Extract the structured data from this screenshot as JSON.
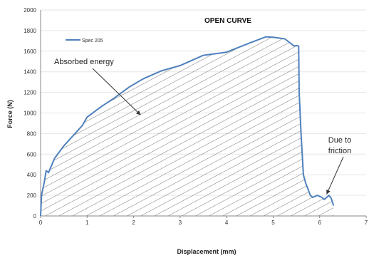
{
  "chart_data": {
    "type": "line",
    "title": "OPEN CURVE",
    "xlabel": "Displacement (mm)",
    "ylabel": "Force (N)",
    "xlim": [
      0,
      7
    ],
    "ylim": [
      0,
      2000
    ],
    "x_ticks": [
      "0",
      "1",
      "2",
      "3",
      "4",
      "5",
      "6",
      "7"
    ],
    "y_ticks": [
      "0",
      "200",
      "400",
      "600",
      "800",
      "1000",
      "1200",
      "1400",
      "1600",
      "1800",
      "2000"
    ],
    "grid": "horizontal",
    "legend_placement": "top-left",
    "series": [
      {
        "name": "Spec 205",
        "color": "#4f81bd",
        "points": [
          [
            0.0,
            0
          ],
          [
            0.02,
            200
          ],
          [
            0.08,
            330
          ],
          [
            0.12,
            440
          ],
          [
            0.17,
            420
          ],
          [
            0.3,
            560
          ],
          [
            0.5,
            680
          ],
          [
            0.7,
            780
          ],
          [
            0.9,
            880
          ],
          [
            1.0,
            960
          ],
          [
            1.3,
            1060
          ],
          [
            1.6,
            1150
          ],
          [
            1.9,
            1250
          ],
          [
            2.2,
            1330
          ],
          [
            2.6,
            1410
          ],
          [
            3.0,
            1460
          ],
          [
            3.5,
            1560
          ],
          [
            4.0,
            1590
          ],
          [
            4.5,
            1680
          ],
          [
            4.85,
            1740
          ],
          [
            5.0,
            1735
          ],
          [
            5.25,
            1720
          ],
          [
            5.45,
            1650
          ],
          [
            5.5,
            1655
          ],
          [
            5.55,
            1650
          ],
          [
            5.56,
            1200
          ],
          [
            5.6,
            800
          ],
          [
            5.65,
            400
          ],
          [
            5.7,
            320
          ],
          [
            5.8,
            200
          ],
          [
            5.85,
            180
          ],
          [
            5.95,
            200
          ],
          [
            6.05,
            180
          ],
          [
            6.1,
            160
          ],
          [
            6.2,
            200
          ],
          [
            6.25,
            170
          ],
          [
            6.3,
            100
          ]
        ]
      }
    ],
    "annotations": [
      {
        "text": "Absorbed energy",
        "arrow_to": [
          2.15,
          980
        ]
      },
      {
        "text_lines": [
          "Due to",
          "friction"
        ],
        "arrow_to": [
          6.15,
          210
        ]
      }
    ]
  }
}
